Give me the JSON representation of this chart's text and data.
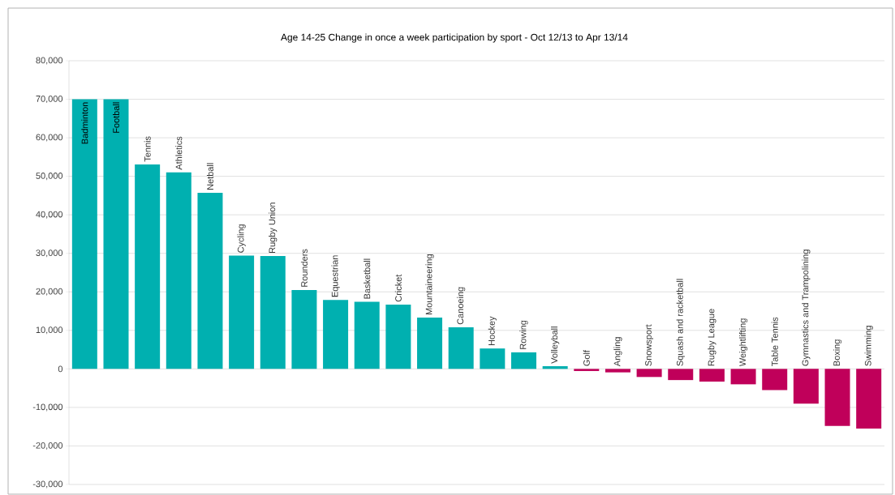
{
  "chart_data": {
    "type": "bar",
    "title": "Age 14-25 Change in once a week participation by sport - Oct 12/13 to Apr 13/14",
    "categories": [
      "Badminton",
      "Football",
      "Tennis",
      "Athletics",
      "Netball",
      "Cycling",
      "Rugby Union",
      "Rounders",
      "Equestrian",
      "Basketball",
      "Cricket",
      "Mountaineering",
      "Canoeing",
      "Hockey",
      "Rowing",
      "Volleyball",
      "Golf",
      "Angling",
      "Snowsport",
      "Squash and racketball",
      "Rugby League",
      "Weightlifting",
      "Table Tennis",
      "Gymnastics and Trampolining",
      "Boxing",
      "Swimming"
    ],
    "values": [
      70000,
      70000,
      53100,
      51000,
      45700,
      29400,
      29300,
      20500,
      17900,
      17400,
      16700,
      13300,
      10800,
      5300,
      4300,
      700,
      -550,
      -900,
      -2100,
      -2900,
      -3300,
      -4000,
      -5500,
      -9000,
      -14800,
      -15500
    ],
    "colors": [
      "#00b0b0",
      "#00b0b0",
      "#00b0b0",
      "#00b0b0",
      "#00b0b0",
      "#00b0b0",
      "#00b0b0",
      "#00b0b0",
      "#00b0b0",
      "#00b0b0",
      "#00b0b0",
      "#00b0b0",
      "#00b0b0",
      "#00b0b0",
      "#00b0b0",
      "#00b0b0",
      "#c0005a",
      "#c0005a",
      "#c0005a",
      "#c0005a",
      "#c0005a",
      "#c0005a",
      "#c0005a",
      "#c0005a",
      "#c0005a",
      "#c0005a"
    ],
    "ylim": [
      -30000,
      80000
    ],
    "yticks": [
      {
        "value": -30000,
        "label": "-30,000"
      },
      {
        "value": -20000,
        "label": "-20,000"
      },
      {
        "value": -10000,
        "label": "-10,000"
      },
      0,
      {
        "value": 10000,
        "label": "10,000"
      },
      {
        "value": 20000,
        "label": "20,000"
      },
      {
        "value": 30000,
        "label": "30,000"
      },
      {
        "value": 40000,
        "label": "40,000"
      },
      {
        "value": 50000,
        "label": "50,000"
      },
      {
        "value": 60000,
        "label": "60,000"
      },
      {
        "value": 70000,
        "label": "70,000"
      },
      {
        "value": 80000,
        "label": "80,000"
      }
    ],
    "grid": "y"
  }
}
